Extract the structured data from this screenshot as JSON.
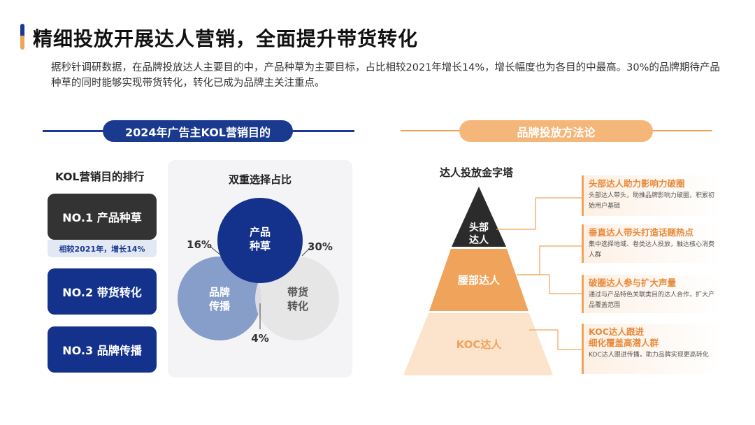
{
  "title": "精细投放开展达人营销，全面提升带货转化",
  "paragraph": "据秒针调研数据，在品牌投放达人主要目的中，产品种草为主要目标，占比相较2021年增长14%，增长幅度也为各目的中最高。30%的品牌期待产品种草的同时能够实现带货转化，转化已成为品牌主关注重点。",
  "left_section": {
    "header": "2024年广告主KOL营销目的",
    "ranking_title": "KOL营销目的排行",
    "ranks": [
      {
        "label": "NO.1   产品种草"
      },
      {
        "label": "NO.2   带货转化"
      },
      {
        "label": "NO.3   品牌传播"
      }
    ],
    "rank1_note": "相较2021年，增长14%",
    "venn": {
      "title": "双重选择占比",
      "circles": [
        {
          "label_line1": "产品",
          "label_line2": "种草",
          "color": "#14318c"
        },
        {
          "label_line1": "品牌",
          "label_line2": "传播",
          "color": "#7d95c6"
        },
        {
          "label_line1": "带货",
          "label_line2": "转化",
          "color": "#e6e6e8"
        }
      ],
      "pct_left": "16%",
      "pct_right": "30%",
      "pct_bottom": "4%"
    }
  },
  "right_section": {
    "header": "品牌投放方法论",
    "pyramid_title": "达人投放金字塔",
    "levels": [
      {
        "label_line1": "头部",
        "label_line2": "达人",
        "color": "#2b2b2b"
      },
      {
        "label": "腰部达人",
        "color": "#f0a35a"
      },
      {
        "label": "KOC达人",
        "color": "#fbe3cc"
      }
    ],
    "infos": [
      {
        "head": "头部达人助力影响力破圈",
        "text": "头部达人带头，助推品牌影响力破圈，积累初始用户基础"
      },
      {
        "head": "垂直达人带头打造话题热点",
        "text": "集中选择地域、卷类达人投放，触达核心消费人群"
      },
      {
        "head": "破圈达人参与扩大声量",
        "text": "通过与产品特色关联类目的达人合作，扩大产品覆盖范围"
      },
      {
        "head": "KOC达人跟进\n细化覆盖高潜人群",
        "head_line1": "KOC达人跟进",
        "head_line2": "细化覆盖高潜人群",
        "text": "KOC达人跟进传播，助力品牌实现更高转化"
      }
    ],
    "colors": {
      "accent": "#f0a35a",
      "dark": "#2b2b2b"
    }
  }
}
